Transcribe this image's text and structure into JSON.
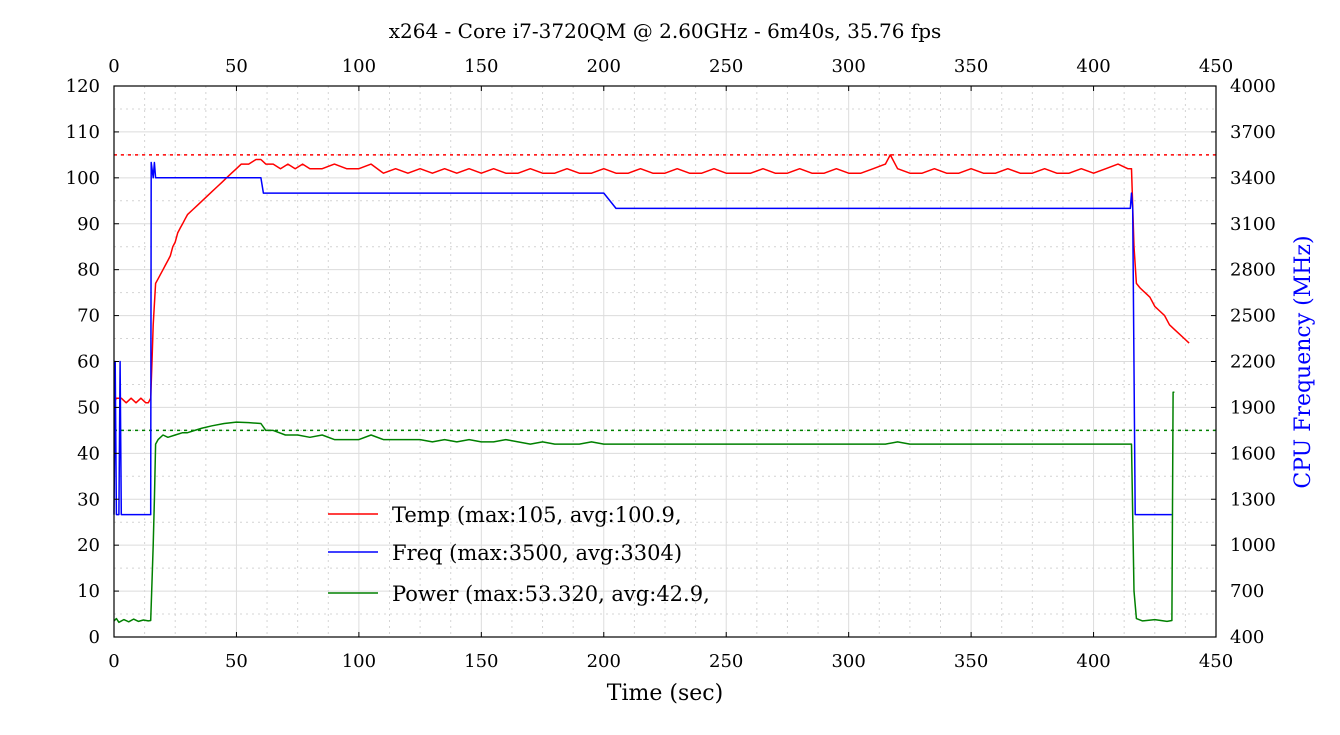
{
  "chart_data": {
    "type": "line",
    "title": "x264 - Core i7-3720QM @ 2.60GHz - 6m40s, 35.76 fps",
    "xlabel": "Time (sec)",
    "ylabel": "",
    "y2label": "CPU Frequency (MHz)",
    "xlim": [
      0,
      450
    ],
    "ylim": [
      0,
      120
    ],
    "y2lim": [
      400,
      4000
    ],
    "x_ticks": [
      "0",
      "50",
      "100",
      "150",
      "200",
      "250",
      "300",
      "350",
      "400",
      "450"
    ],
    "x_top_ticks": [
      "0",
      "50",
      "100",
      "150",
      "200",
      "250",
      "300",
      "350",
      "400",
      "450"
    ],
    "y_ticks": [
      "0",
      "10",
      "20",
      "30",
      "40",
      "50",
      "60",
      "70",
      "80",
      "90",
      "100",
      "110",
      "120"
    ],
    "y2_ticks": [
      "400",
      "700",
      "1000",
      "1300",
      "1600",
      "1900",
      "2200",
      "2500",
      "2800",
      "3100",
      "3400",
      "3700",
      "4000"
    ],
    "grid": true,
    "legend_position": "lower-center",
    "reference_lines": [
      {
        "axis": "left",
        "value": 105,
        "color": "#ff0000",
        "style": "dotted"
      },
      {
        "axis": "left",
        "value": 45,
        "color": "#008000",
        "style": "dotted"
      }
    ],
    "series": [
      {
        "name": "Temp (max:105, avg:100.9,",
        "axis": "left",
        "color": "#ff0000",
        "points": [
          [
            0,
            51
          ],
          [
            1,
            52
          ],
          [
            3,
            52
          ],
          [
            5,
            51
          ],
          [
            7,
            52
          ],
          [
            9,
            51
          ],
          [
            11,
            52
          ],
          [
            13,
            51
          ],
          [
            14,
            51
          ],
          [
            15,
            52
          ],
          [
            15.5,
            60
          ],
          [
            16,
            68
          ],
          [
            17,
            77
          ],
          [
            18,
            78
          ],
          [
            19,
            79
          ],
          [
            20,
            80
          ],
          [
            21,
            81
          ],
          [
            22,
            82
          ],
          [
            23,
            83
          ],
          [
            24,
            85
          ],
          [
            25,
            86
          ],
          [
            26,
            88
          ],
          [
            27,
            89
          ],
          [
            28,
            90
          ],
          [
            29,
            91
          ],
          [
            30,
            92
          ],
          [
            32,
            93
          ],
          [
            34,
            94
          ],
          [
            36,
            95
          ],
          [
            38,
            96
          ],
          [
            40,
            97
          ],
          [
            42,
            98
          ],
          [
            44,
            99
          ],
          [
            46,
            100
          ],
          [
            48,
            101
          ],
          [
            50,
            102
          ],
          [
            52,
            103
          ],
          [
            55,
            103
          ],
          [
            58,
            104
          ],
          [
            60,
            104
          ],
          [
            62,
            103
          ],
          [
            65,
            103
          ],
          [
            68,
            102
          ],
          [
            71,
            103
          ],
          [
            74,
            102
          ],
          [
            77,
            103
          ],
          [
            80,
            102
          ],
          [
            85,
            102
          ],
          [
            90,
            103
          ],
          [
            95,
            102
          ],
          [
            100,
            102
          ],
          [
            105,
            103
          ],
          [
            110,
            101
          ],
          [
            115,
            102
          ],
          [
            120,
            101
          ],
          [
            125,
            102
          ],
          [
            130,
            101
          ],
          [
            135,
            102
          ],
          [
            140,
            101
          ],
          [
            145,
            102
          ],
          [
            150,
            101
          ],
          [
            155,
            102
          ],
          [
            160,
            101
          ],
          [
            165,
            101
          ],
          [
            170,
            102
          ],
          [
            175,
            101
          ],
          [
            180,
            101
          ],
          [
            185,
            102
          ],
          [
            190,
            101
          ],
          [
            195,
            101
          ],
          [
            200,
            102
          ],
          [
            205,
            101
          ],
          [
            210,
            101
          ],
          [
            215,
            102
          ],
          [
            220,
            101
          ],
          [
            225,
            101
          ],
          [
            230,
            102
          ],
          [
            235,
            101
          ],
          [
            240,
            101
          ],
          [
            245,
            102
          ],
          [
            250,
            101
          ],
          [
            255,
            101
          ],
          [
            260,
            101
          ],
          [
            265,
            102
          ],
          [
            270,
            101
          ],
          [
            275,
            101
          ],
          [
            280,
            102
          ],
          [
            285,
            101
          ],
          [
            290,
            101
          ],
          [
            295,
            102
          ],
          [
            300,
            101
          ],
          [
            305,
            101
          ],
          [
            310,
            102
          ],
          [
            315,
            103
          ],
          [
            317,
            105
          ],
          [
            320,
            102
          ],
          [
            325,
            101
          ],
          [
            330,
            101
          ],
          [
            335,
            102
          ],
          [
            340,
            101
          ],
          [
            345,
            101
          ],
          [
            350,
            102
          ],
          [
            355,
            101
          ],
          [
            360,
            101
          ],
          [
            365,
            102
          ],
          [
            370,
            101
          ],
          [
            375,
            101
          ],
          [
            380,
            102
          ],
          [
            385,
            101
          ],
          [
            390,
            101
          ],
          [
            395,
            102
          ],
          [
            400,
            101
          ],
          [
            405,
            102
          ],
          [
            410,
            103
          ],
          [
            414,
            102
          ],
          [
            415.5,
            102
          ],
          [
            416.5,
            85
          ],
          [
            417.5,
            77
          ],
          [
            419,
            76
          ],
          [
            421,
            75
          ],
          [
            423,
            74
          ],
          [
            425,
            72
          ],
          [
            427,
            71
          ],
          [
            429,
            70
          ],
          [
            431,
            68
          ],
          [
            433,
            67
          ],
          [
            435,
            66
          ],
          [
            437,
            65
          ],
          [
            439,
            64
          ]
        ]
      },
      {
        "name": "Freq (max:3500, avg:3304)",
        "axis": "right",
        "color": "#0000ff",
        "points": [
          [
            0,
            1200
          ],
          [
            0.5,
            2200
          ],
          [
            1,
            1200
          ],
          [
            2,
            1200
          ],
          [
            2.5,
            2200
          ],
          [
            3,
            1200
          ],
          [
            5,
            1200
          ],
          [
            10,
            1200
          ],
          [
            15,
            1200
          ],
          [
            15.2,
            3500
          ],
          [
            16,
            3400
          ],
          [
            16.5,
            3500
          ],
          [
            17,
            3400
          ],
          [
            20,
            3400
          ],
          [
            30,
            3400
          ],
          [
            40,
            3400
          ],
          [
            50,
            3400
          ],
          [
            60,
            3400
          ],
          [
            61,
            3300
          ],
          [
            70,
            3300
          ],
          [
            80,
            3300
          ],
          [
            90,
            3300
          ],
          [
            100,
            3300
          ],
          [
            110,
            3300
          ],
          [
            120,
            3300
          ],
          [
            130,
            3300
          ],
          [
            140,
            3300
          ],
          [
            150,
            3300
          ],
          [
            160,
            3300
          ],
          [
            170,
            3300
          ],
          [
            180,
            3300
          ],
          [
            190,
            3300
          ],
          [
            200,
            3300
          ],
          [
            205,
            3200
          ],
          [
            210,
            3200
          ],
          [
            220,
            3200
          ],
          [
            230,
            3200
          ],
          [
            240,
            3200
          ],
          [
            250,
            3200
          ],
          [
            260,
            3200
          ],
          [
            270,
            3200
          ],
          [
            280,
            3200
          ],
          [
            290,
            3200
          ],
          [
            300,
            3200
          ],
          [
            310,
            3200
          ],
          [
            320,
            3200
          ],
          [
            330,
            3200
          ],
          [
            340,
            3200
          ],
          [
            350,
            3200
          ],
          [
            360,
            3200
          ],
          [
            370,
            3200
          ],
          [
            380,
            3200
          ],
          [
            390,
            3200
          ],
          [
            400,
            3200
          ],
          [
            410,
            3200
          ],
          [
            415,
            3200
          ],
          [
            415.5,
            3300
          ],
          [
            416,
            3200
          ],
          [
            417,
            1200
          ],
          [
            425,
            1200
          ],
          [
            430,
            1200
          ],
          [
            432,
            1200
          ]
        ]
      },
      {
        "name": "Power (max:53.320, avg:42.9,",
        "axis": "left",
        "color": "#008000",
        "points": [
          [
            0,
            3.5
          ],
          [
            1,
            4
          ],
          [
            2,
            3.2
          ],
          [
            4,
            3.8
          ],
          [
            6,
            3.3
          ],
          [
            8,
            3.9
          ],
          [
            10,
            3.4
          ],
          [
            12,
            3.7
          ],
          [
            14,
            3.5
          ],
          [
            15,
            3.6
          ],
          [
            15.5,
            12
          ],
          [
            16,
            20
          ],
          [
            16.5,
            30
          ],
          [
            17,
            42
          ],
          [
            18,
            43
          ],
          [
            20,
            44
          ],
          [
            22,
            43.5
          ],
          [
            25,
            44
          ],
          [
            28,
            44.5
          ],
          [
            30,
            44.5
          ],
          [
            33,
            45
          ],
          [
            36,
            45.5
          ],
          [
            40,
            46
          ],
          [
            45,
            46.5
          ],
          [
            50,
            46.8
          ],
          [
            55,
            46.7
          ],
          [
            60,
            46.5
          ],
          [
            62,
            45
          ],
          [
            65,
            45
          ],
          [
            70,
            44
          ],
          [
            75,
            44
          ],
          [
            80,
            43.5
          ],
          [
            85,
            44
          ],
          [
            90,
            43
          ],
          [
            95,
            43
          ],
          [
            100,
            43
          ],
          [
            105,
            44
          ],
          [
            110,
            43
          ],
          [
            115,
            43
          ],
          [
            120,
            43
          ],
          [
            125,
            43
          ],
          [
            130,
            42.5
          ],
          [
            135,
            43
          ],
          [
            140,
            42.5
          ],
          [
            145,
            43
          ],
          [
            150,
            42.5
          ],
          [
            155,
            42.5
          ],
          [
            160,
            43
          ],
          [
            165,
            42.5
          ],
          [
            170,
            42
          ],
          [
            175,
            42.5
          ],
          [
            180,
            42
          ],
          [
            185,
            42
          ],
          [
            190,
            42
          ],
          [
            195,
            42.5
          ],
          [
            200,
            42
          ],
          [
            205,
            42
          ],
          [
            210,
            42
          ],
          [
            215,
            42
          ],
          [
            220,
            42
          ],
          [
            225,
            42
          ],
          [
            230,
            42
          ],
          [
            235,
            42
          ],
          [
            240,
            42
          ],
          [
            245,
            42
          ],
          [
            250,
            42
          ],
          [
            255,
            42
          ],
          [
            260,
            42
          ],
          [
            265,
            42
          ],
          [
            270,
            42
          ],
          [
            275,
            42
          ],
          [
            280,
            42
          ],
          [
            285,
            42
          ],
          [
            290,
            42
          ],
          [
            295,
            42
          ],
          [
            300,
            42
          ],
          [
            305,
            42
          ],
          [
            310,
            42
          ],
          [
            315,
            42
          ],
          [
            320,
            42.5
          ],
          [
            325,
            42
          ],
          [
            330,
            42
          ],
          [
            335,
            42
          ],
          [
            340,
            42
          ],
          [
            345,
            42
          ],
          [
            350,
            42
          ],
          [
            355,
            42
          ],
          [
            360,
            42
          ],
          [
            365,
            42
          ],
          [
            370,
            42
          ],
          [
            375,
            42
          ],
          [
            380,
            42
          ],
          [
            385,
            42
          ],
          [
            390,
            42
          ],
          [
            395,
            42
          ],
          [
            400,
            42
          ],
          [
            405,
            42
          ],
          [
            410,
            42
          ],
          [
            414,
            42
          ],
          [
            415.5,
            42
          ],
          [
            416.5,
            10
          ],
          [
            417.5,
            4
          ],
          [
            420,
            3.5
          ],
          [
            425,
            3.8
          ],
          [
            430,
            3.4
          ],
          [
            432,
            3.6
          ],
          [
            432.5,
            53.3
          ],
          [
            433,
            53.3
          ]
        ]
      }
    ]
  }
}
